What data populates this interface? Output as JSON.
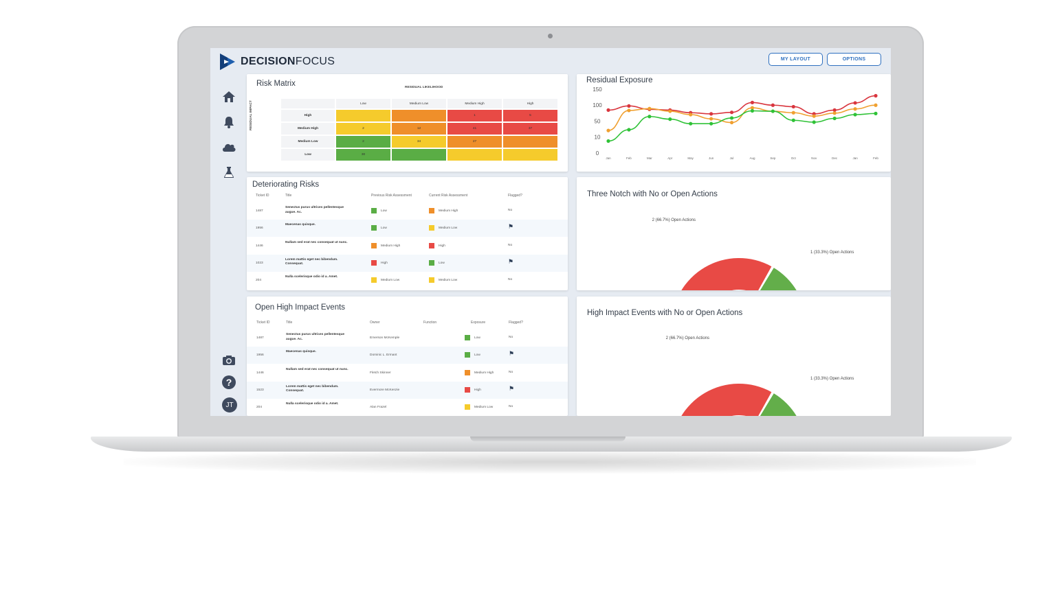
{
  "app": {
    "logo_bold": "DECISION",
    "logo_light": "FOCUS",
    "my_layout_label": "MY LAYOUT",
    "options_label": "OPTIONS",
    "avatar_initials": "JT"
  },
  "colors": {
    "high": "#e84a45",
    "medium_high": "#ef8f2a",
    "medium_low": "#f5cb2c",
    "low": "#5aad45",
    "accent": "#2d6fbf"
  },
  "sidebar": {
    "icons": [
      "home-icon",
      "bell-icon",
      "cloud-icon",
      "flask-icon",
      "camera-icon",
      "help-icon"
    ]
  },
  "risk_matrix": {
    "title": "Risk Matrix",
    "x_axis_label": "RESIDUAL LIKELIHOOD",
    "y_axis_label": "RESIDUAL IMPACT",
    "columns": [
      "Low",
      "Medium Low",
      "Medium High",
      "High"
    ],
    "rows": [
      {
        "label": "High",
        "cells": [
          {
            "v": "",
            "c": "medium_low"
          },
          {
            "v": "",
            "c": "medium_high"
          },
          {
            "v": "1",
            "c": "high"
          },
          {
            "v": "5",
            "c": "high"
          }
        ]
      },
      {
        "label": "Medium High",
        "cells": [
          {
            "v": "2",
            "c": "medium_low"
          },
          {
            "v": "12",
            "c": "medium_high"
          },
          {
            "v": "41",
            "c": "high"
          },
          {
            "v": "37",
            "c": "high"
          }
        ]
      },
      {
        "label": "Medium Low",
        "cells": [
          {
            "v": "2",
            "c": "low"
          },
          {
            "v": "34",
            "c": "medium_low"
          },
          {
            "v": "27",
            "c": "medium_high"
          },
          {
            "v": "",
            "c": "medium_high"
          }
        ]
      },
      {
        "label": "Low",
        "cells": [
          {
            "v": "30",
            "c": "low"
          },
          {
            "v": "",
            "c": "low"
          },
          {
            "v": "",
            "c": "medium_low"
          },
          {
            "v": "",
            "c": "medium_low"
          }
        ]
      }
    ]
  },
  "deteriorating": {
    "title": "Deteriorating Risks",
    "headers": [
      "Ticket ID",
      "Title",
      "Previous Risk Assessment",
      "Current Risk Assessment",
      "Flagged?"
    ],
    "rows": [
      {
        "id": "1487",
        "title": "Senectus purus ultrices pellentesque augue. Ac.",
        "prev": "Low",
        "prev_c": "low",
        "curr": "Medium High",
        "curr_c": "medium_high",
        "flag": "No"
      },
      {
        "id": "1956",
        "title": "Maecenas quisque.",
        "prev": "Low",
        "prev_c": "low",
        "curr": "Medium Low",
        "curr_c": "medium_low",
        "flag": "flag"
      },
      {
        "id": "1446",
        "title": "Nullam sed erat nec consequat ut nunc.",
        "prev": "Medium High",
        "prev_c": "medium_high",
        "curr": "High",
        "curr_c": "high",
        "flag": "No"
      },
      {
        "id": "1023",
        "title": "Lorem mattis eget nec bibendum. Consequat.",
        "prev": "High",
        "prev_c": "high",
        "curr": "Low",
        "curr_c": "low",
        "flag": "flag"
      },
      {
        "id": "204",
        "title": "Nulla scelerisque odio id a. Amet.",
        "prev": "Medium Low",
        "prev_c": "medium_low",
        "curr": "Medium Low",
        "curr_c": "medium_low",
        "flag": "No"
      }
    ]
  },
  "open_events": {
    "title": "Open High Impact Events",
    "headers": [
      "Ticket ID",
      "Title",
      "Owner",
      "Function",
      "Exposure",
      "Flagged?"
    ],
    "rows": [
      {
        "id": "1487",
        "title": "Senectus purus ultrices pellentesque augue. Ac.",
        "owner": "Emerson McKemple",
        "exp": "Low",
        "exp_c": "low",
        "flag": "No"
      },
      {
        "id": "1956",
        "title": "Maecenas quisque.",
        "owner": "Dominic L. Ermant",
        "exp": "Low",
        "exp_c": "low",
        "flag": "flag"
      },
      {
        "id": "1446",
        "title": "Nullam sed erat nec consequat ut nunc.",
        "owner": "Fletch Skinner",
        "exp": "Medium High",
        "exp_c": "medium_high",
        "flag": "No"
      },
      {
        "id": "1523",
        "title": "Lorem mattis eget nec bibendum. Consequat.",
        "owner": "Evermore McKenzie",
        "exp": "High",
        "exp_c": "high",
        "flag": "flag"
      },
      {
        "id": "204",
        "title": "Nulla scelerisque odio id a. Amet.",
        "owner": "Alan Frazel",
        "exp": "Medium Low",
        "exp_c": "medium_low",
        "flag": "No"
      }
    ]
  },
  "chart_data": [
    {
      "type": "line",
      "title": "Residual Exposure",
      "x": [
        "Jan",
        "Feb",
        "Mar",
        "Apr",
        "May",
        "Jun",
        "Jul",
        "Aug",
        "Sep",
        "Oct",
        "Nov",
        "Dec",
        "Jan",
        "Feb"
      ],
      "y_ticks": [
        "150",
        "100",
        "50",
        "10",
        "0"
      ],
      "series": [
        {
          "color": "#d9363e",
          "values": [
            112,
            123,
            114,
            112,
            105,
            102,
            106,
            132,
            125,
            121,
            102,
            112,
            131,
            150
          ]
        },
        {
          "color": "#f0a030",
          "values": [
            58,
            111,
            116,
            109,
            100,
            89,
            79,
            118,
            109,
            105,
            96,
            104,
            115,
            125
          ]
        },
        {
          "color": "#2fc237",
          "values": [
            30,
            60,
            95,
            88,
            76,
            76,
            91,
            110,
            109,
            85,
            80,
            90,
            100,
            103
          ]
        }
      ],
      "ylim": [
        0,
        160
      ],
      "grid": false
    },
    {
      "type": "pie",
      "title": "Three Notch with No or Open Actions",
      "slices": [
        {
          "label": "2 (66.7%) Open Actions",
          "value": 66.7,
          "color": "#e84a45"
        },
        {
          "label": "1 (33.3%) Open Actions",
          "value": 33.3,
          "color": "#63ae4a"
        }
      ]
    },
    {
      "type": "pie",
      "title": "High Impact Events with No or Open Actions",
      "slices": [
        {
          "label": "2 (66.7%) Open Actions",
          "value": 66.7,
          "color": "#e84a45"
        },
        {
          "label": "1 (33.3%) Open Actions",
          "value": 33.3,
          "color": "#63ae4a"
        }
      ]
    }
  ]
}
